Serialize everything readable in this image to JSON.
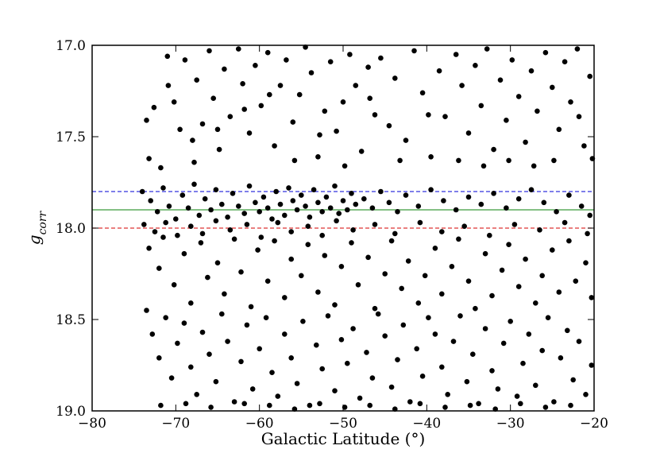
{
  "chart_data": {
    "type": "scatter",
    "title": "",
    "xlabel": "Galactic Latitude (°)",
    "ylabel_main": "g",
    "ylabel_sub": "corr",
    "xlim": [
      -80,
      -20
    ],
    "ylim": [
      17.0,
      19.0
    ],
    "y_inverted": true,
    "grid": false,
    "x_ticks": [
      -80,
      -70,
      -60,
      -50,
      -40,
      -30,
      -20
    ],
    "x_tick_labels": [
      "−80",
      "−70",
      "−60",
      "−50",
      "−40",
      "−30",
      "−20"
    ],
    "y_ticks": [
      17.0,
      17.5,
      18.0,
      18.5,
      19.0
    ],
    "y_tick_labels": [
      "17.0",
      "17.5",
      "18.0",
      "18.5",
      "19.0"
    ],
    "hlines": [
      {
        "y": 17.8,
        "style": "dashed",
        "color": "#3333dd"
      },
      {
        "y": 17.9,
        "style": "solid",
        "color": "#3a9a3a"
      },
      {
        "y": 18.0,
        "style": "dashed",
        "color": "#dd3333"
      }
    ],
    "point_color": "#000000",
    "points": [
      [
        -73.5,
        17.41
      ],
      [
        -73.2,
        17.62
      ],
      [
        -72.6,
        17.34
      ],
      [
        -71.8,
        17.67
      ],
      [
        -71.0,
        17.06
      ],
      [
        -70.9,
        17.22
      ],
      [
        -69.5,
        17.46
      ],
      [
        -68.9,
        17.08
      ],
      [
        -68.0,
        17.52
      ],
      [
        -67.5,
        17.19
      ],
      [
        -66.8,
        17.43
      ],
      [
        -66.0,
        17.03
      ],
      [
        -65.5,
        17.29
      ],
      [
        -64.8,
        17.57
      ],
      [
        -64.2,
        17.13
      ],
      [
        -63.5,
        17.39
      ],
      [
        -62.5,
        17.02
      ],
      [
        -62.0,
        17.21
      ],
      [
        -61.2,
        17.48
      ],
      [
        -60.5,
        17.11
      ],
      [
        -59.8,
        17.33
      ],
      [
        -59.0,
        17.04
      ],
      [
        -58.2,
        17.55
      ],
      [
        -57.5,
        17.22
      ],
      [
        -56.8,
        17.08
      ],
      [
        -56.0,
        17.42
      ],
      [
        -55.2,
        17.27
      ],
      [
        -54.5,
        17.01
      ],
      [
        -53.8,
        17.15
      ],
      [
        -53.0,
        17.61
      ],
      [
        -52.2,
        17.36
      ],
      [
        -51.5,
        17.09
      ],
      [
        -50.8,
        17.47
      ],
      [
        -50.0,
        17.31
      ],
      [
        -49.2,
        17.05
      ],
      [
        -48.5,
        17.22
      ],
      [
        -47.8,
        17.58
      ],
      [
        -47.0,
        17.12
      ],
      [
        -46.2,
        17.38
      ],
      [
        -45.5,
        17.07
      ],
      [
        -44.5,
        17.44
      ],
      [
        -43.8,
        17.18
      ],
      [
        -42.5,
        17.52
      ],
      [
        -41.5,
        17.03
      ],
      [
        -40.5,
        17.26
      ],
      [
        -39.5,
        17.61
      ],
      [
        -38.5,
        17.14
      ],
      [
        -37.8,
        17.39
      ],
      [
        -36.5,
        17.05
      ],
      [
        -35.8,
        17.22
      ],
      [
        -35.0,
        17.48
      ],
      [
        -34.2,
        17.11
      ],
      [
        -33.5,
        17.33
      ],
      [
        -32.8,
        17.02
      ],
      [
        -32.0,
        17.57
      ],
      [
        -31.2,
        17.19
      ],
      [
        -30.5,
        17.41
      ],
      [
        -29.8,
        17.08
      ],
      [
        -29.0,
        17.28
      ],
      [
        -28.2,
        17.53
      ],
      [
        -27.5,
        17.14
      ],
      [
        -26.8,
        17.36
      ],
      [
        -25.8,
        17.04
      ],
      [
        -25.0,
        17.23
      ],
      [
        -24.2,
        17.46
      ],
      [
        -23.5,
        17.09
      ],
      [
        -22.8,
        17.31
      ],
      [
        -22.0,
        17.02
      ],
      [
        -21.2,
        17.55
      ],
      [
        -20.5,
        17.17
      ],
      [
        -20.2,
        17.62
      ],
      [
        -70.2,
        17.31
      ],
      [
        -67.8,
        17.64
      ],
      [
        -65.0,
        17.46
      ],
      [
        -61.8,
        17.35
      ],
      [
        -58.8,
        17.27
      ],
      [
        -55.8,
        17.63
      ],
      [
        -52.8,
        17.49
      ],
      [
        -49.8,
        17.66
      ],
      [
        -46.8,
        17.29
      ],
      [
        -43.2,
        17.63
      ],
      [
        -39.8,
        17.38
      ],
      [
        -36.2,
        17.63
      ],
      [
        -33.2,
        17.66
      ],
      [
        -30.2,
        17.63
      ],
      [
        -27.2,
        17.66
      ],
      [
        -24.8,
        17.63
      ],
      [
        -21.8,
        17.39
      ],
      [
        -74.0,
        17.8
      ],
      [
        -73.0,
        17.85
      ],
      [
        -72.2,
        17.91
      ],
      [
        -71.5,
        17.78
      ],
      [
        -70.8,
        17.88
      ],
      [
        -70.0,
        17.95
      ],
      [
        -69.2,
        17.82
      ],
      [
        -68.5,
        17.89
      ],
      [
        -67.8,
        17.76
      ],
      [
        -67.2,
        17.93
      ],
      [
        -66.5,
        17.84
      ],
      [
        -65.8,
        17.9
      ],
      [
        -65.2,
        17.79
      ],
      [
        -64.5,
        17.87
      ],
      [
        -63.8,
        17.94
      ],
      [
        -63.2,
        17.81
      ],
      [
        -62.5,
        17.88
      ],
      [
        -61.8,
        17.92
      ],
      [
        -61.2,
        17.77
      ],
      [
        -60.5,
        17.86
      ],
      [
        -60.0,
        17.91
      ],
      [
        -59.5,
        17.83
      ],
      [
        -59.0,
        17.89
      ],
      [
        -58.5,
        17.95
      ],
      [
        -58.0,
        17.8
      ],
      [
        -57.5,
        17.87
      ],
      [
        -57.0,
        17.93
      ],
      [
        -56.5,
        17.78
      ],
      [
        -56.0,
        17.85
      ],
      [
        -55.5,
        17.9
      ],
      [
        -55.0,
        17.82
      ],
      [
        -54.5,
        17.88
      ],
      [
        -54.0,
        17.94
      ],
      [
        -53.5,
        17.79
      ],
      [
        -53.0,
        17.86
      ],
      [
        -52.5,
        17.91
      ],
      [
        -52.0,
        17.83
      ],
      [
        -51.5,
        17.89
      ],
      [
        -51.0,
        17.77
      ],
      [
        -50.5,
        17.92
      ],
      [
        -50.0,
        17.85
      ],
      [
        -49.5,
        17.9
      ],
      [
        -49.0,
        17.81
      ],
      [
        -48.5,
        17.87
      ],
      [
        -47.5,
        17.84
      ],
      [
        -46.5,
        17.89
      ],
      [
        -45.5,
        17.8
      ],
      [
        -44.5,
        17.86
      ],
      [
        -43.5,
        17.91
      ],
      [
        -42.5,
        17.82
      ],
      [
        -41.0,
        17.88
      ],
      [
        -39.5,
        17.79
      ],
      [
        -38.0,
        17.85
      ],
      [
        -36.5,
        17.9
      ],
      [
        -35.0,
        17.83
      ],
      [
        -33.5,
        17.87
      ],
      [
        -32.0,
        17.81
      ],
      [
        -30.5,
        17.89
      ],
      [
        -29.0,
        17.84
      ],
      [
        -27.5,
        17.79
      ],
      [
        -26.0,
        17.86
      ],
      [
        -24.5,
        17.91
      ],
      [
        -23.0,
        17.82
      ],
      [
        -21.5,
        17.88
      ],
      [
        -20.5,
        17.93
      ],
      [
        -73.8,
        17.98
      ],
      [
        -72.5,
        18.02
      ],
      [
        -71.2,
        17.97
      ],
      [
        -69.8,
        18.04
      ],
      [
        -68.2,
        17.99
      ],
      [
        -66.8,
        18.03
      ],
      [
        -65.2,
        17.96
      ],
      [
        -63.5,
        18.01
      ],
      [
        -61.5,
        17.98
      ],
      [
        -59.8,
        18.05
      ],
      [
        -57.8,
        17.97
      ],
      [
        -56.2,
        18.02
      ],
      [
        -54.2,
        17.99
      ],
      [
        -52.5,
        18.04
      ],
      [
        -50.8,
        17.96
      ],
      [
        -48.8,
        18.01
      ],
      [
        -46.2,
        17.98
      ],
      [
        -43.8,
        18.03
      ],
      [
        -40.8,
        17.97
      ],
      [
        -38.2,
        18.02
      ],
      [
        -35.5,
        17.99
      ],
      [
        -32.5,
        18.04
      ],
      [
        -29.5,
        17.98
      ],
      [
        -26.5,
        18.01
      ],
      [
        -23.5,
        17.97
      ],
      [
        -20.8,
        18.03
      ],
      [
        -73.2,
        18.11
      ],
      [
        -72.0,
        18.22
      ],
      [
        -71.5,
        18.05
      ],
      [
        -70.2,
        18.31
      ],
      [
        -69.0,
        18.14
      ],
      [
        -68.2,
        18.41
      ],
      [
        -67.0,
        18.08
      ],
      [
        -66.2,
        18.27
      ],
      [
        -65.0,
        18.19
      ],
      [
        -64.2,
        18.36
      ],
      [
        -63.0,
        18.06
      ],
      [
        -62.2,
        18.24
      ],
      [
        -61.0,
        18.43
      ],
      [
        -60.2,
        18.12
      ],
      [
        -59.0,
        18.29
      ],
      [
        -58.2,
        18.07
      ],
      [
        -57.0,
        18.38
      ],
      [
        -56.2,
        18.17
      ],
      [
        -55.0,
        18.26
      ],
      [
        -54.2,
        18.09
      ],
      [
        -53.0,
        18.35
      ],
      [
        -52.2,
        18.15
      ],
      [
        -51.0,
        18.42
      ],
      [
        -50.2,
        18.21
      ],
      [
        -49.0,
        18.08
      ],
      [
        -48.2,
        18.31
      ],
      [
        -47.0,
        18.16
      ],
      [
        -46.2,
        18.44
      ],
      [
        -45.0,
        18.25
      ],
      [
        -44.2,
        18.07
      ],
      [
        -43.0,
        18.33
      ],
      [
        -42.2,
        18.18
      ],
      [
        -41.0,
        18.41
      ],
      [
        -40.2,
        18.26
      ],
      [
        -39.0,
        18.11
      ],
      [
        -38.2,
        18.36
      ],
      [
        -37.0,
        18.21
      ],
      [
        -36.2,
        18.06
      ],
      [
        -35.0,
        18.29
      ],
      [
        -34.2,
        18.44
      ],
      [
        -33.0,
        18.14
      ],
      [
        -32.2,
        18.37
      ],
      [
        -31.0,
        18.23
      ],
      [
        -30.2,
        18.09
      ],
      [
        -29.0,
        18.32
      ],
      [
        -28.2,
        18.17
      ],
      [
        -27.0,
        18.41
      ],
      [
        -26.2,
        18.26
      ],
      [
        -25.0,
        18.12
      ],
      [
        -24.2,
        18.35
      ],
      [
        -23.0,
        18.07
      ],
      [
        -22.2,
        18.29
      ],
      [
        -21.0,
        18.19
      ],
      [
        -20.3,
        18.38
      ],
      [
        -73.5,
        18.45
      ],
      [
        -72.8,
        18.58
      ],
      [
        -72.0,
        18.71
      ],
      [
        -71.2,
        18.49
      ],
      [
        -70.5,
        18.82
      ],
      [
        -69.8,
        18.63
      ],
      [
        -69.0,
        18.52
      ],
      [
        -68.2,
        18.76
      ],
      [
        -67.5,
        18.91
      ],
      [
        -66.8,
        18.57
      ],
      [
        -66.0,
        18.69
      ],
      [
        -65.2,
        18.84
      ],
      [
        -64.5,
        18.47
      ],
      [
        -63.8,
        18.62
      ],
      [
        -63.0,
        18.95
      ],
      [
        -62.2,
        18.73
      ],
      [
        -61.5,
        18.53
      ],
      [
        -60.8,
        18.88
      ],
      [
        -60.0,
        18.66
      ],
      [
        -59.2,
        18.49
      ],
      [
        -58.5,
        18.79
      ],
      [
        -57.8,
        18.92
      ],
      [
        -57.0,
        18.58
      ],
      [
        -56.2,
        18.71
      ],
      [
        -55.5,
        18.85
      ],
      [
        -54.8,
        18.51
      ],
      [
        -54.0,
        18.97
      ],
      [
        -53.2,
        18.64
      ],
      [
        -52.5,
        18.77
      ],
      [
        -51.8,
        18.48
      ],
      [
        -51.0,
        18.89
      ],
      [
        -50.2,
        18.61
      ],
      [
        -49.5,
        18.74
      ],
      [
        -48.8,
        18.55
      ],
      [
        -48.0,
        18.93
      ],
      [
        -47.2,
        18.68
      ],
      [
        -46.5,
        18.82
      ],
      [
        -45.8,
        18.47
      ],
      [
        -45.0,
        18.59
      ],
      [
        -44.2,
        18.87
      ],
      [
        -43.5,
        18.72
      ],
      [
        -42.8,
        18.53
      ],
      [
        -42.0,
        18.95
      ],
      [
        -41.2,
        18.66
      ],
      [
        -40.5,
        18.81
      ],
      [
        -39.8,
        18.49
      ],
      [
        -39.0,
        18.58
      ],
      [
        -38.2,
        18.76
      ],
      [
        -37.5,
        18.91
      ],
      [
        -36.8,
        18.62
      ],
      [
        -36.0,
        18.48
      ],
      [
        -35.2,
        18.84
      ],
      [
        -34.5,
        18.69
      ],
      [
        -33.8,
        18.96
      ],
      [
        -33.0,
        18.55
      ],
      [
        -32.2,
        18.78
      ],
      [
        -31.5,
        18.88
      ],
      [
        -30.8,
        18.63
      ],
      [
        -30.0,
        18.51
      ],
      [
        -29.2,
        18.92
      ],
      [
        -28.5,
        18.74
      ],
      [
        -27.8,
        18.58
      ],
      [
        -27.0,
        18.86
      ],
      [
        -26.2,
        18.67
      ],
      [
        -25.5,
        18.49
      ],
      [
        -24.8,
        18.95
      ],
      [
        -24.0,
        18.71
      ],
      [
        -23.2,
        18.56
      ],
      [
        -22.5,
        18.83
      ],
      [
        -21.8,
        18.62
      ],
      [
        -21.0,
        18.91
      ],
      [
        -20.3,
        18.75
      ],
      [
        -71.8,
        18.97
      ],
      [
        -68.8,
        18.96
      ],
      [
        -65.8,
        18.98
      ],
      [
        -61.8,
        18.96
      ],
      [
        -58.8,
        18.97
      ],
      [
        -55.8,
        18.99
      ],
      [
        -52.8,
        18.96
      ],
      [
        -49.8,
        18.98
      ],
      [
        -46.8,
        18.97
      ],
      [
        -43.8,
        18.99
      ],
      [
        -40.8,
        18.96
      ],
      [
        -37.8,
        18.98
      ],
      [
        -34.8,
        18.97
      ],
      [
        -31.8,
        18.99
      ],
      [
        -28.8,
        18.96
      ],
      [
        -25.8,
        18.98
      ],
      [
        -22.8,
        18.97
      ]
    ]
  }
}
